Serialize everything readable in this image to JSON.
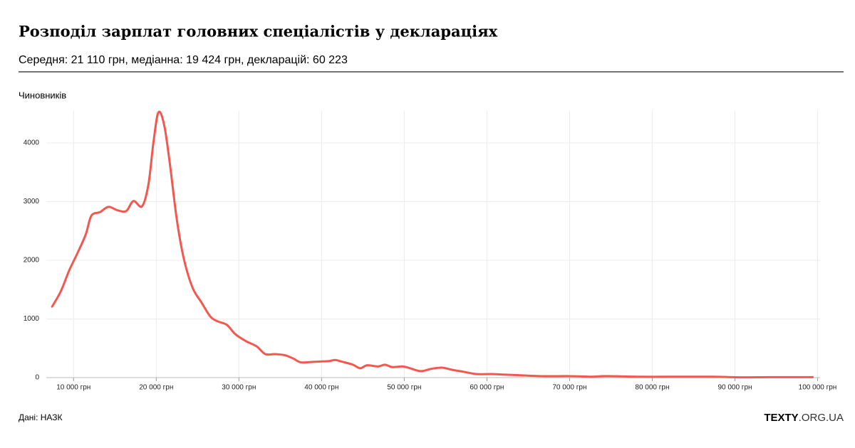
{
  "chart_data": {
    "type": "line",
    "title": "Розподіл зарплат головних спеціалістів у деклараціях",
    "subtitle": "Середня: 21 110 грн, медіанна: 19 424 грн, декларацій: 60 223",
    "y_label": "Чиновників",
    "source": "Дані: НАЗК",
    "brand": {
      "bold": "TEXTY",
      "light": ".ORG.UA"
    },
    "x": [
      7400,
      8450,
      9480,
      10430,
      11470,
      12150,
      13190,
      14220,
      15350,
      16380,
      17240,
      18280,
      19050,
      19660,
      20260,
      20950,
      21640,
      22500,
      23360,
      24400,
      25430,
      26550,
      27410,
      28530,
      29570,
      30860,
      32160,
      33190,
      34310,
      35600,
      36640,
      37500,
      39050,
      40780,
      41640,
      42500,
      43790,
      44660,
      45520,
      46810,
      47670,
      48530,
      49830,
      50690,
      51980,
      53280,
      54570,
      55860,
      57160,
      58710,
      60600,
      62330,
      64050,
      66640,
      70090,
      72670,
      74400,
      78710,
      83020,
      87330,
      90780,
      94220,
      99400
    ],
    "series": [
      {
        "name": "Чиновників",
        "color": "#f4574e",
        "values": [
          1210,
          1470,
          1830,
          2110,
          2440,
          2760,
          2820,
          2910,
          2850,
          2840,
          3010,
          2920,
          3290,
          4010,
          4520,
          4310,
          3650,
          2680,
          2010,
          1530,
          1290,
          1040,
          960,
          900,
          740,
          620,
          530,
          400,
          400,
          380,
          320,
          260,
          270,
          280,
          300,
          270,
          220,
          160,
          210,
          190,
          220,
          180,
          190,
          160,
          110,
          150,
          170,
          130,
          100,
          60,
          60,
          50,
          40,
          25,
          25,
          15,
          25,
          15,
          15,
          15,
          5,
          8,
          8
        ]
      }
    ],
    "xlim": [
      6700,
      100300
    ],
    "ylim": [
      0,
      4550
    ],
    "xticks": [
      {
        "value": 10000,
        "label": "10 000 грн"
      },
      {
        "value": 20000,
        "label": "20 000 грн"
      },
      {
        "value": 30000,
        "label": "30 000 грн"
      },
      {
        "value": 40000,
        "label": "40 000 грн"
      },
      {
        "value": 50000,
        "label": "50 000 грн"
      },
      {
        "value": 60000,
        "label": "60 000 грн"
      },
      {
        "value": 70000,
        "label": "70 000 грн"
      },
      {
        "value": 80000,
        "label": "80 000 грн"
      },
      {
        "value": 90000,
        "label": "90 000 грн"
      },
      {
        "value": 100000,
        "label": "100 000 грн"
      }
    ],
    "yticks": [
      0,
      1000,
      2000,
      3000,
      4000
    ],
    "grid": true
  }
}
